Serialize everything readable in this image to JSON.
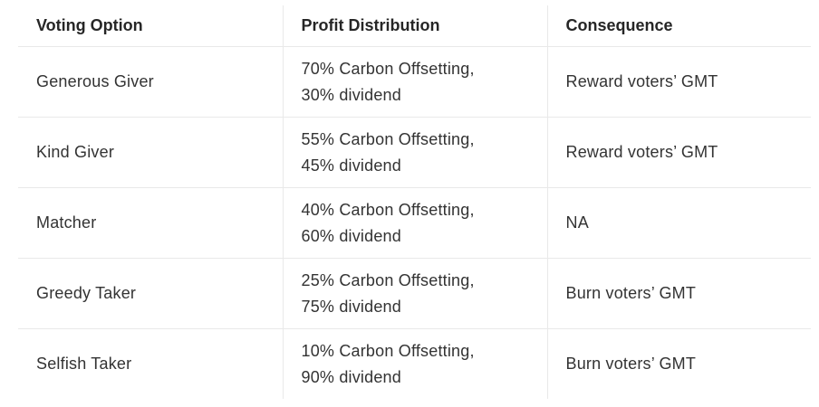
{
  "table": {
    "headers": [
      "Voting Option",
      "Profit Distribution",
      "Consequence"
    ],
    "rows": [
      {
        "option": "Generous Giver",
        "distribution_line1": "70% Carbon Offsetting,",
        "distribution_line2": "30% dividend",
        "consequence": "Reward voters’ GMT"
      },
      {
        "option": "Kind Giver",
        "distribution_line1": "55% Carbon Offsetting,",
        "distribution_line2": "45% dividend",
        "consequence": "Reward voters’ GMT"
      },
      {
        "option": "Matcher",
        "distribution_line1": "40% Carbon Offsetting,",
        "distribution_line2": "60% dividend",
        "consequence": "NA"
      },
      {
        "option": "Greedy Taker",
        "distribution_line1": "25% Carbon Offsetting,",
        "distribution_line2": "75% dividend",
        "consequence": "Burn voters’ GMT"
      },
      {
        "option": "Selfish Taker",
        "distribution_line1": "10% Carbon Offsetting,",
        "distribution_line2": "90% dividend",
        "consequence": "Burn voters’ GMT"
      }
    ]
  }
}
